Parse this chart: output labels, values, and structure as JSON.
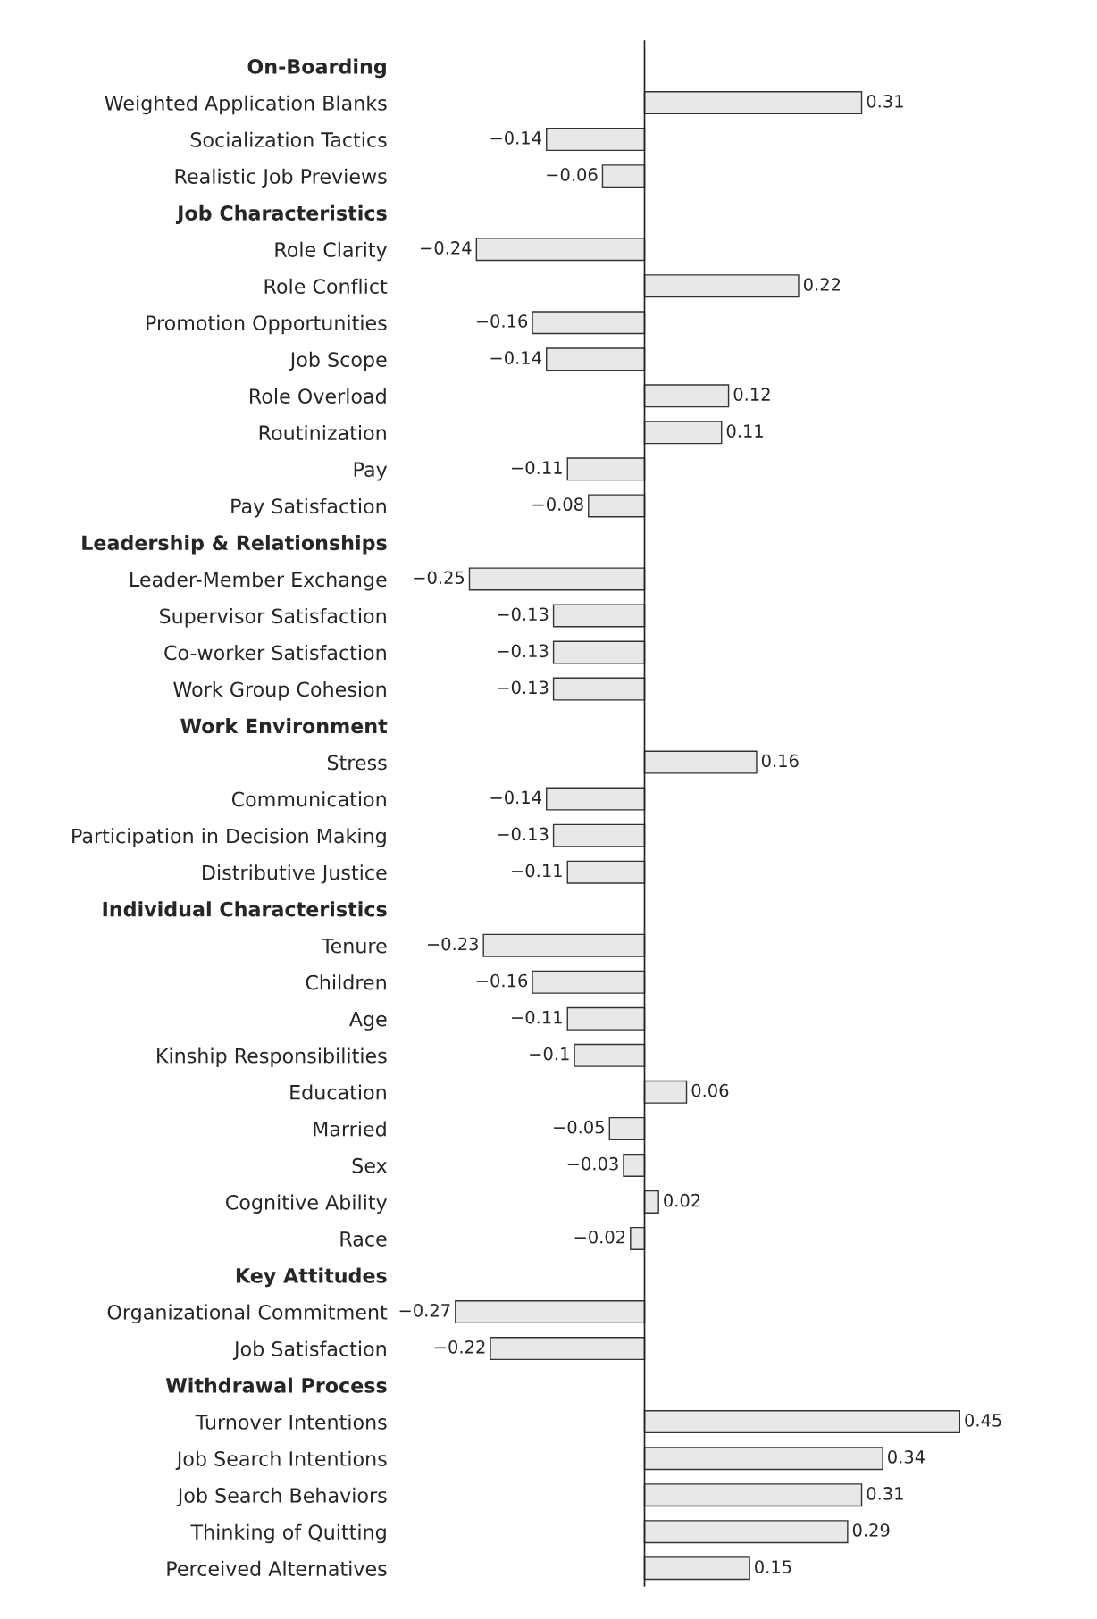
{
  "chart_data": {
    "type": "bar",
    "orientation": "horizontal",
    "tick_labels": "y",
    "grid": false,
    "legend": false,
    "categories": [
      "On-Boarding",
      "Weighted Application Blanks",
      "Socialization Tactics",
      "Realistic Job Previews",
      "Job Characteristics",
      "Role Clarity",
      "Role Conflict",
      "Promotion Opportunities",
      "Job Scope",
      "Role Overload",
      "Routinization",
      "Pay",
      "Pay Satisfaction",
      "Leadership & Relationships",
      "Leader-Member Exchange",
      "Supervisor Satisfaction",
      "Co-worker Satisfaction",
      "Work Group Cohesion",
      "Work Environment",
      "Stress",
      "Communication",
      "Participation in Decision Making",
      "Distributive Justice",
      "Individual Characteristics",
      "Tenure",
      "Children",
      "Age",
      "Kinship Responsibilities",
      "Education",
      "Married",
      "Sex",
      "Cognitive Ability",
      "Race",
      "Key Attitudes",
      "Organizational Commitment",
      "Job Satisfaction",
      "Withdrawal Process",
      "Turnover Intentions",
      "Job Search Intentions",
      "Job Search Behaviors",
      "Thinking of Quitting",
      "Perceived Alternatives"
    ],
    "values": [
      null,
      0.31,
      -0.14,
      -0.06,
      null,
      -0.24,
      0.22,
      -0.16,
      -0.14,
      0.12,
      0.11,
      -0.11,
      -0.08,
      null,
      -0.25,
      -0.13,
      -0.13,
      -0.13,
      null,
      0.16,
      -0.14,
      -0.13,
      -0.11,
      null,
      -0.23,
      -0.16,
      -0.11,
      -0.1,
      0.06,
      -0.05,
      -0.03,
      0.02,
      -0.02,
      null,
      -0.27,
      -0.22,
      null,
      0.45,
      0.34,
      0.31,
      0.29,
      0.15
    ],
    "value_labels": [
      null,
      "0.31",
      "−0.14",
      "−0.06",
      null,
      "−0.24",
      "0.22",
      "−0.16",
      "−0.14",
      "0.12",
      "0.11",
      "−0.11",
      "−0.08",
      null,
      "−0.25",
      "−0.13",
      "−0.13",
      "−0.13",
      null,
      "0.16",
      "−0.14",
      "−0.13",
      "−0.11",
      null,
      "−0.23",
      "−0.16",
      "−0.11",
      "−0.1",
      "0.06",
      "−0.05",
      "−0.03",
      "0.02",
      "−0.02",
      null,
      "−0.27",
      "−0.22",
      null,
      "0.45",
      "0.34",
      "0.31",
      "0.29",
      "0.15"
    ],
    "color": "#e8e8e8",
    "ref_lines": [
      {
        "axis": "x",
        "value": 0
      }
    ]
  }
}
